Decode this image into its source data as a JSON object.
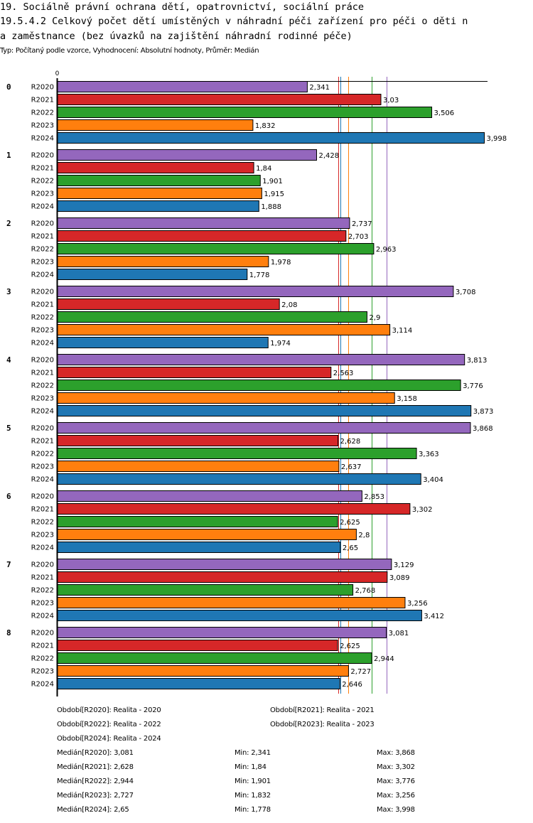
{
  "header": {
    "title_line1": "19. Sociálně právní ochrana dětí, opatrovnictví, sociální práce",
    "title_line2": "19.5.4.2 Celkový počet dětí umístěných v náhradní péči zařízení pro péči o děti n",
    "title_line3": "a zaměstnance (bez úvazků na zajištění náhradní rodinné péče)",
    "subtitle": "Typ: Počítaný podle vzorce, Vyhodnocení: Absolutní hodnoty, Průměr: Medián"
  },
  "chart_data": {
    "type": "bar",
    "orientation": "horizontal",
    "title": "19.5.4.2 Celkový počet dětí umístěných v náhradní péči zařízení pro péči o děti n a zaměstnance (bez úvazků na zajištění náhradní rodinné péče)",
    "xlabel": "",
    "ylabel": "",
    "x_tick_labels": [
      "0"
    ],
    "xlim": [
      0,
      4031
    ],
    "grid": false,
    "categories": [
      "0",
      "1",
      "2",
      "3",
      "4",
      "5",
      "6",
      "7",
      "8"
    ],
    "series": [
      {
        "name": "R2020",
        "color": "#9467bd",
        "values": [
          2.341,
          2.428,
          2.737,
          3.708,
          3.813,
          3.868,
          2.853,
          3.129,
          3.081
        ],
        "labels": [
          "2,341",
          "2,428",
          "2,737",
          "3,708",
          "3,813",
          "3,868",
          "2,853",
          "3,129",
          "3,081"
        ]
      },
      {
        "name": "R2021",
        "color": "#d62728",
        "values": [
          3.03,
          1.84,
          2.703,
          2.08,
          2.563,
          2.628,
          3.302,
          3.089,
          2.625
        ],
        "labels": [
          "3,03",
          "1,84",
          "2,703",
          "2,08",
          "2,563",
          "2,628",
          "3,302",
          "3,089",
          "2,625"
        ]
      },
      {
        "name": "R2022",
        "color": "#2ca02c",
        "values": [
          3.506,
          1.901,
          2.963,
          2.9,
          3.776,
          3.363,
          2.625,
          2.768,
          2.944
        ],
        "labels": [
          "3,506",
          "1,901",
          "2,963",
          "2,9",
          "3,776",
          "3,363",
          "2,625",
          "2,768",
          "2,944"
        ]
      },
      {
        "name": "R2023",
        "color": "#ff7f0e",
        "values": [
          1.832,
          1.915,
          1.978,
          3.114,
          3.158,
          2.637,
          2.8,
          3.256,
          2.727
        ],
        "labels": [
          "1,832",
          "1,915",
          "1,978",
          "3,114",
          "3,158",
          "2,637",
          "2,8",
          "3,256",
          "2,727"
        ]
      },
      {
        "name": "R2024",
        "color": "#1f77b4",
        "values": [
          3.998,
          1.888,
          1.778,
          1.974,
          3.873,
          3.404,
          2.65,
          3.412,
          2.646
        ],
        "labels": [
          "3,998",
          "1,888",
          "1,778",
          "1,974",
          "3,873",
          "3,404",
          "2,65",
          "3,412",
          "2,646"
        ]
      }
    ],
    "median_lines": [
      {
        "series": "R2020",
        "value": 3.081,
        "color": "#9467bd"
      },
      {
        "series": "R2021",
        "value": 2.628,
        "color": "#d62728"
      },
      {
        "series": "R2022",
        "value": 2.944,
        "color": "#2ca02c"
      },
      {
        "series": "R2023",
        "value": 2.727,
        "color": "#ff7f0e"
      },
      {
        "series": "R2024",
        "value": 2.65,
        "color": "#1f77b4"
      }
    ],
    "x_max_value": 4.031
  },
  "legend": {
    "periods": [
      "Období[R2020]: Realita - 2020",
      "Období[R2021]: Realita - 2021",
      "Období[R2022]: Realita - 2022",
      "Období[R2023]: Realita - 2023",
      "Období[R2024]: Realita - 2024"
    ],
    "stats": [
      {
        "median": "Medián[R2020]: 3,081",
        "min": "Min: 2,341",
        "max": "Max: 3,868"
      },
      {
        "median": "Medián[R2021]: 2,628",
        "min": "Min: 1,84",
        "max": "Max: 3,302"
      },
      {
        "median": "Medián[R2022]: 2,944",
        "min": "Min: 1,901",
        "max": "Max: 3,776"
      },
      {
        "median": "Medián[R2023]: 2,727",
        "min": "Min: 1,832",
        "max": "Max: 3,256"
      },
      {
        "median": "Medián[R2024]: 2,65",
        "min": "Min: 1,778",
        "max": "Max: 3,998"
      }
    ]
  }
}
